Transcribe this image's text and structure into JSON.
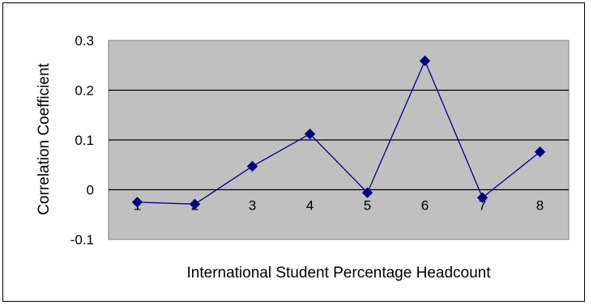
{
  "chart_data": {
    "type": "line",
    "title": "",
    "xlabel": "International Student Percentage Headcount",
    "ylabel": "Correlation Coefficient",
    "categories": [
      "1",
      "2",
      "3",
      "4",
      "5",
      "6",
      "7",
      "8"
    ],
    "series": [
      {
        "values": [
          -0.025,
          -0.029,
          0.047,
          0.112,
          -0.006,
          0.259,
          -0.016,
          0.076
        ],
        "color": "#000080",
        "marker": "diamond"
      }
    ],
    "ylim": [
      -0.1,
      0.3
    ],
    "yticks": [
      -0.1,
      0,
      0.1,
      0.2,
      0.3
    ],
    "ytick_labels": [
      "-0.1",
      "0",
      "0.1",
      "0.2",
      "0.3"
    ],
    "grid": "horizontal",
    "plot_background": "#c0c0c0",
    "legend": "none"
  }
}
